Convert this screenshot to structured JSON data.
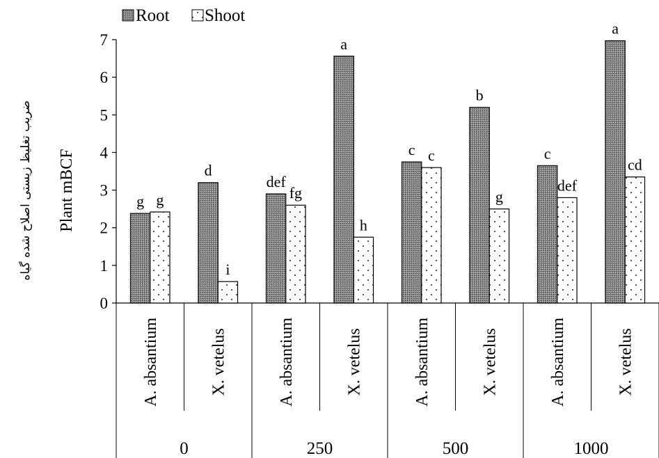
{
  "chart_data": {
    "type": "bar",
    "ylabel": "Plant mBCF",
    "ylabel_fa": "ضریب تغلیظ زیستی اصلاح شده گیاه",
    "ylim": [
      0,
      7
    ],
    "yticks": [
      "0",
      "1",
      "2",
      "3",
      "4",
      "5",
      "6",
      "7"
    ],
    "grid": false,
    "legend": {
      "position": "top-left",
      "entries": [
        "Root",
        "Shoot"
      ]
    },
    "groups": [
      "0",
      "250",
      "500",
      "1000"
    ],
    "categories": [
      "A. absantium",
      "X. vetelus",
      "A. absantium",
      "X. vetelus",
      "A. absantium",
      "X. vetelus",
      "A. absantium",
      "X. vetelus"
    ],
    "series": [
      {
        "name": "Root",
        "pattern": "dark-checker",
        "values": [
          2.38,
          3.2,
          2.9,
          6.56,
          3.75,
          5.2,
          3.65,
          6.97
        ],
        "labels": [
          "g",
          "d",
          "def",
          "a",
          "c",
          "b",
          "c",
          "a"
        ]
      },
      {
        "name": "Shoot",
        "pattern": "dotted",
        "values": [
          2.42,
          0.57,
          2.6,
          1.75,
          3.6,
          2.5,
          2.8,
          3.35
        ],
        "labels": [
          "g",
          "i",
          "fg",
          "h",
          "c",
          "g",
          "def",
          "cd"
        ]
      }
    ]
  }
}
